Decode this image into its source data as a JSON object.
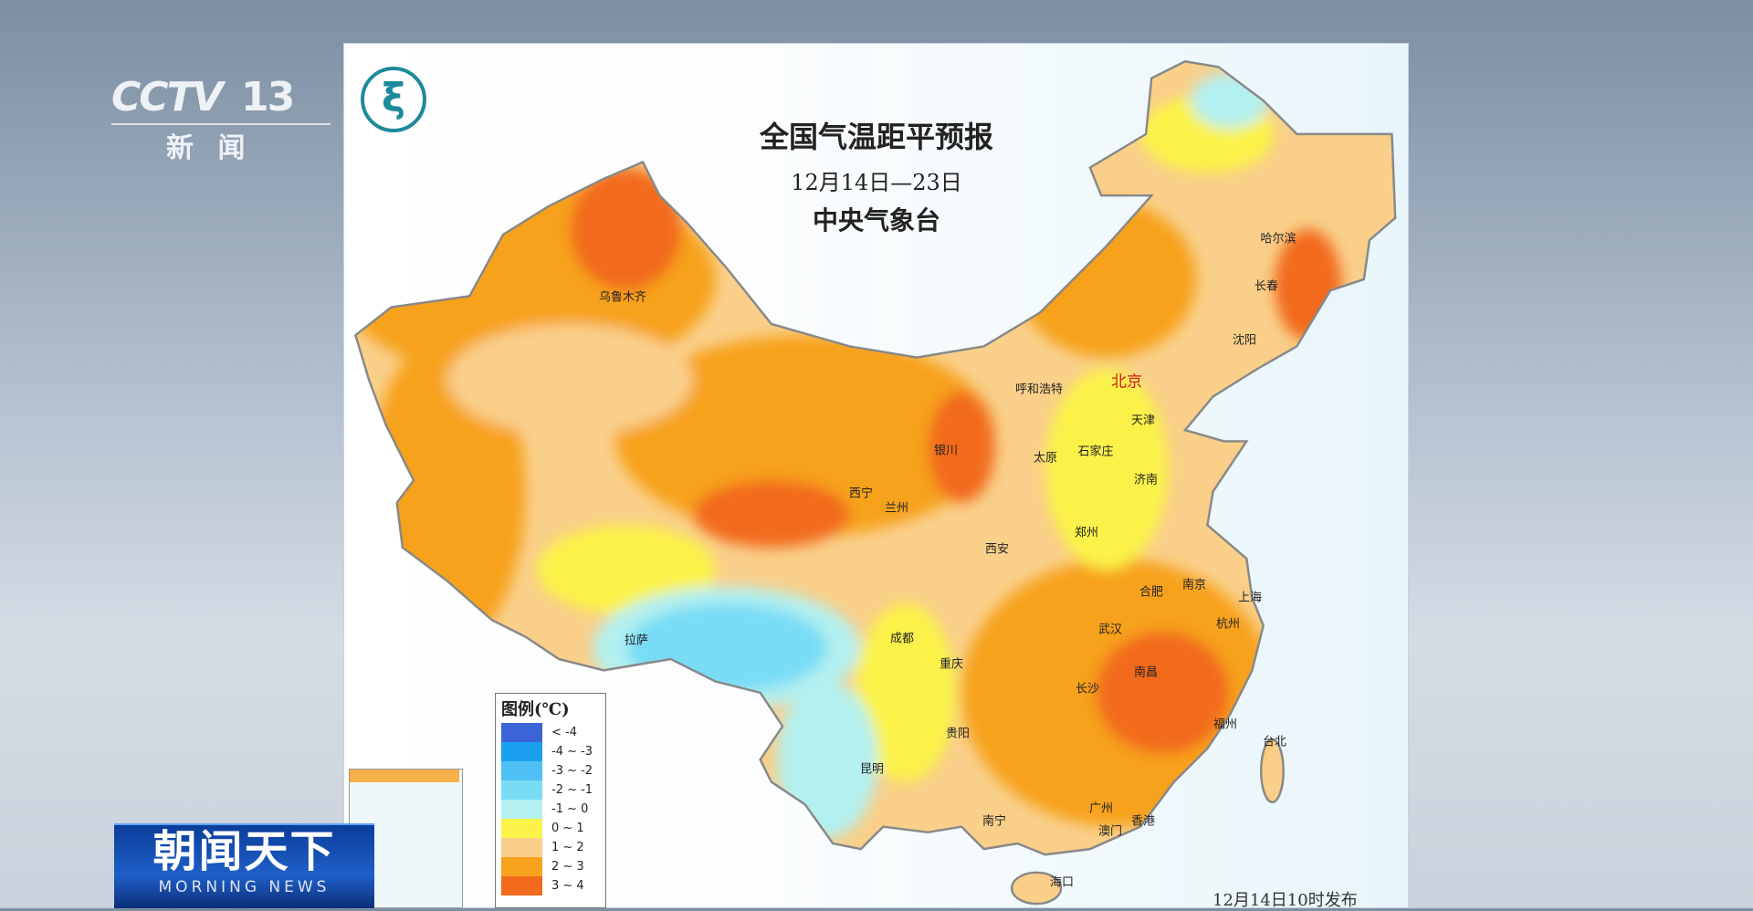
{
  "channel": {
    "logo_text": "CCTV",
    "number": "13",
    "subtitle": "新 闻"
  },
  "program": {
    "title": "朝闻天下",
    "subtitle": "MORNING NEWS"
  },
  "map": {
    "title": "全国气温距平预报",
    "date_range": "12月14日—23日",
    "issuer": "中央气象台",
    "published": "12月14日10时发布",
    "legend": {
      "title": "图例(℃)",
      "items": [
        {
          "range": "< -4",
          "color": "#3a64d8"
        },
        {
          "range": "-4 ~ -3",
          "color": "#1ba0f0"
        },
        {
          "range": "-3 ~ -2",
          "color": "#4fc0f5"
        },
        {
          "range": "-2 ~ -1",
          "color": "#78dcf5"
        },
        {
          "range": "-1 ~ 0",
          "color": "#b4f0f0"
        },
        {
          "range": "0 ~ 1",
          "color": "#fbf24a"
        },
        {
          "range": "1 ~ 2",
          "color": "#f9cf8a"
        },
        {
          "range": "2 ~ 3",
          "color": "#f7a21e"
        },
        {
          "range": "3 ~ 4",
          "color": "#f26a1c"
        }
      ]
    },
    "cities": [
      "乌鲁木齐",
      "哈尔滨",
      "长春",
      "沈阳",
      "呼和浩特",
      "北京",
      "天津",
      "银川",
      "太原",
      "石家庄",
      "济南",
      "西宁",
      "兰州",
      "郑州",
      "西安",
      "合肥",
      "南京",
      "上海",
      "杭州",
      "武汉",
      "成都",
      "拉萨",
      "重庆",
      "长沙",
      "南昌",
      "福州",
      "台北",
      "贵阳",
      "昆明",
      "南宁",
      "广州",
      "香港",
      "澳门",
      "海口"
    ]
  }
}
